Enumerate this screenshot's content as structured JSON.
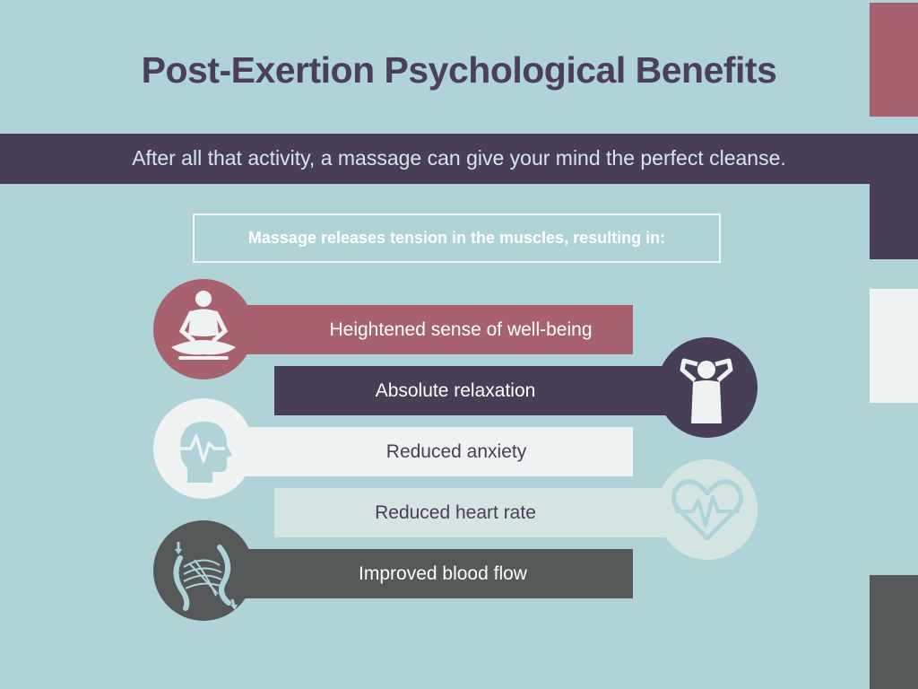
{
  "title": "Post-Exertion Psychological Benefits",
  "subtitle": "After all that activity, a massage can give your mind the perfect cleanse.",
  "callout": "Massage releases tension in the muscles, resulting in:",
  "benefits": [
    {
      "label": "Heightened sense of well-being",
      "icon": "meditation-icon",
      "color": "#a8626f"
    },
    {
      "label": "Absolute relaxation",
      "icon": "relaxed-person-icon",
      "color": "#483e56"
    },
    {
      "label": "Reduced anxiety",
      "icon": "head-heartbeat-icon",
      "color": "#eef2f2"
    },
    {
      "label": "Reduced heart rate",
      "icon": "heart-pulse-icon",
      "color": "#d3e4e2"
    },
    {
      "label": "Improved blood flow",
      "icon": "blood-vessels-icon",
      "color": "#555859"
    }
  ],
  "colors": {
    "background": "#afd3d6",
    "title": "#4b3f5b",
    "rose": "#a8626f",
    "plum": "#483e56",
    "light": "#eef2f2",
    "charcoal": "#555859"
  }
}
